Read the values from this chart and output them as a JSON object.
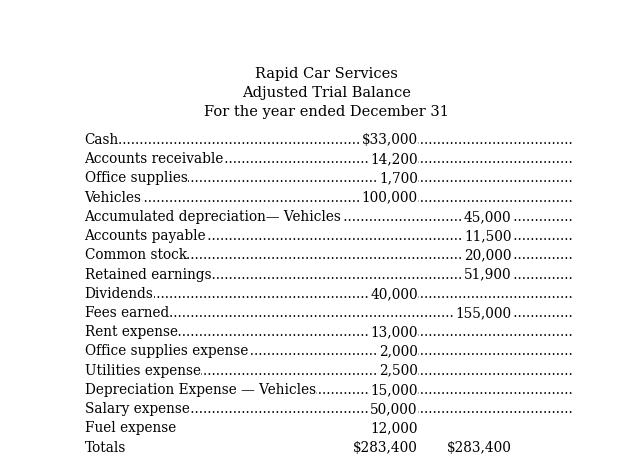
{
  "title_lines": [
    "Rapid Car Services",
    "Adjusted Trial Balance",
    "For the year ended December 31"
  ],
  "rows": [
    {
      "label": "Cash",
      "debit": "$33,000",
      "credit": ""
    },
    {
      "label": "Accounts receivable",
      "debit": "14,200",
      "credit": ""
    },
    {
      "label": "Office supplies",
      "debit": "1,700",
      "credit": ""
    },
    {
      "label": "Vehicles",
      "debit": "100,000",
      "credit": ""
    },
    {
      "label": "Accumulated depreciation— Vehicles",
      "debit": "",
      "credit": "45,000"
    },
    {
      "label": "Accounts payable",
      "debit": "",
      "credit": "11,500"
    },
    {
      "label": "Common stock",
      "debit": "",
      "credit": "20,000"
    },
    {
      "label": "Retained earnings",
      "debit": "",
      "credit": "51,900"
    },
    {
      "label": "Dividends",
      "debit": "40,000",
      "credit": ""
    },
    {
      "label": "Fees earned",
      "debit": "",
      "credit": "155,000"
    },
    {
      "label": "Rent expense",
      "debit": "13,000",
      "credit": ""
    },
    {
      "label": "Office supplies expense",
      "debit": "2,000",
      "credit": ""
    },
    {
      "label": "Utilities expense",
      "debit": "2,500",
      "credit": ""
    },
    {
      "label": "Depreciation Expense — Vehicles",
      "debit": "15,000",
      "credit": ""
    },
    {
      "label": "Salary expense",
      "debit": "50,000",
      "credit": ""
    },
    {
      "label": "Fuel expense",
      "debit": "12,000",
      "credit": "",
      "underline_debit": true,
      "underline_credit": true
    },
    {
      "label": "Totals",
      "debit": "$283,400",
      "credit": "$283,400",
      "double_underline": true
    }
  ],
  "font_size": 9.8,
  "title_font_size": 10.5,
  "background_color": "#ffffff",
  "text_color": "#000000",
  "font_family": "serif"
}
